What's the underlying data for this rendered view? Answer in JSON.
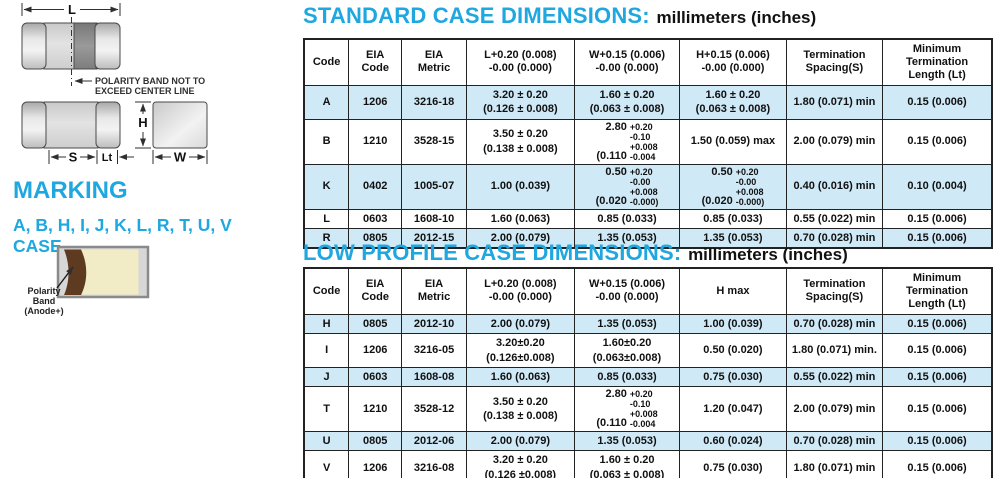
{
  "diagram": {
    "dim_l": "L",
    "dim_h": "H",
    "dim_s": "S",
    "dim_lt": "Lt",
    "dim_w": "W",
    "polarity_note_1": "POLARITY BAND NOT TO",
    "polarity_note_2": "EXCEED CENTER LINE",
    "marking_heading": "MARKING",
    "case_letters": "A, B, H, I, J, K, L, R, T, U, V",
    "case_word": "CASE",
    "polarity_band_label_1": "Polarity",
    "polarity_band_label_2": "Band",
    "polarity_band_label_3": "(Anode+)"
  },
  "colors": {
    "accent_blue": "#1fa7e0",
    "row_shade_blue": "#cfe9f6",
    "polarity_band_brown": "#5d3a20",
    "chip_body_cream": "#f2ecc6"
  },
  "standard_table": {
    "title": "STANDARD CASE DIMENSIONS:",
    "units": "millimeters (inches)",
    "headers": [
      "Code",
      "EIA\nCode",
      "EIA\nMetric",
      "L+0.20 (0.008)\n-0.00 (0.000)",
      "W+0.15 (0.006)\n-0.00 (0.000)",
      "H+0.15 (0.006)\n-0.00 (0.000)",
      "Termination\nSpacing(S)",
      "Minimum\nTermination\nLength (Lt)"
    ],
    "rows": [
      {
        "shaded": true,
        "cells": [
          "A",
          "1206",
          "3216-18",
          "3.20 ± 0.20\n(0.126 ± 0.008)",
          "1.60 ± 0.20\n(0.063 ± 0.008)",
          "1.60 ± 0.20\n(0.063 ± 0.008)",
          "1.80 (0.071) min",
          "0.15 (0.006)"
        ]
      },
      {
        "shaded": false,
        "cells": [
          "B",
          "1210",
          "3528-15",
          "3.50 ± 0.20\n(0.138 ± 0.008)",
          {
            "mm": "2.80",
            "in": "(0.110",
            "tols": [
              "+0.20",
              "-0.10",
              "+0.008",
              "-0.004"
            ]
          },
          "1.50 (0.059) max",
          "2.00 (0.079) min",
          "0.15 (0.006)"
        ]
      },
      {
        "shaded": true,
        "cells": [
          "K",
          "0402",
          "1005-07",
          "1.00 (0.039)",
          {
            "mm": "0.50",
            "in": "(0.020",
            "tols": [
              "+0.20",
              "-0.00",
              "+0.008",
              "-0.000)"
            ]
          },
          {
            "mm": "0.50",
            "in": "(0.020",
            "tols": [
              "+0.20",
              "-0.00",
              "+0.008",
              "-0.000)"
            ]
          },
          "0.40 (0.016) min",
          "0.10 (0.004)"
        ]
      },
      {
        "shaded": false,
        "cells": [
          "L",
          "0603",
          "1608-10",
          "1.60 (0.063)",
          "0.85 (0.033)",
          "0.85 (0.033)",
          "0.55 (0.022) min",
          "0.15 (0.006)"
        ]
      },
      {
        "shaded": true,
        "cells": [
          "R",
          "0805",
          "2012-15",
          "2.00 (0.079)",
          "1.35 (0.053)",
          "1.35 (0.053)",
          "0.70 (0.028) min",
          "0.15 (0.006)"
        ]
      }
    ]
  },
  "low_profile_table": {
    "title": "LOW PROFILE CASE DIMENSIONS:",
    "units": "millimeters (inches)",
    "headers": [
      "Code",
      "EIA\nCode",
      "EIA\nMetric",
      "L+0.20 (0.008)\n-0.00 (0.000)",
      "W+0.15 (0.006)\n-0.00 (0.000)",
      "H max",
      "Termination\nSpacing(S)",
      "Minimum\nTermination\nLength (Lt)"
    ],
    "rows": [
      {
        "shaded": true,
        "cells": [
          "H",
          "0805",
          "2012-10",
          "2.00 (0.079)",
          "1.35 (0.053)",
          "1.00 (0.039)",
          "0.70 (0.028) min",
          "0.15 (0.006)"
        ]
      },
      {
        "shaded": false,
        "cells": [
          "I",
          "1206",
          "3216-05",
          "3.20±0.20\n(0.126±0.008)",
          "1.60±0.20\n(0.063±0.008)",
          "0.50 (0.020)",
          "1.80 (0.071) min.",
          "0.15 (0.006)"
        ]
      },
      {
        "shaded": true,
        "cells": [
          "J",
          "0603",
          "1608-08",
          "1.60 (0.063)",
          "0.85 (0.033)",
          "0.75 (0.030)",
          "0.55 (0.022) min",
          "0.15 (0.006)"
        ]
      },
      {
        "shaded": false,
        "cells": [
          "T",
          "1210",
          "3528-12",
          "3.50 ± 0.20\n(0.138 ± 0.008)",
          {
            "mm": "2.80",
            "in": "(0.110",
            "tols": [
              "+0.20",
              "-0.10",
              "+0.008",
              "-0.004"
            ]
          },
          "1.20 (0.047)",
          "2.00 (0.079) min",
          "0.15 (0.006)"
        ]
      },
      {
        "shaded": true,
        "cells": [
          "U",
          "0805",
          "2012-06",
          "2.00 (0.079)",
          "1.35 (0.053)",
          "0.60 (0.024)",
          "0.70 (0.028) min",
          "0.15 (0.006)"
        ]
      },
      {
        "shaded": false,
        "cells": [
          "V",
          "1206",
          "3216-08",
          "3.20 ± 0.20\n(0.126 ±0.008)",
          "1.60 ± 0.20\n(0.063 ± 0.008)",
          "0.75 (0.030)",
          "1.80 (0.071) min",
          "0.15 (0.006)"
        ]
      }
    ]
  }
}
